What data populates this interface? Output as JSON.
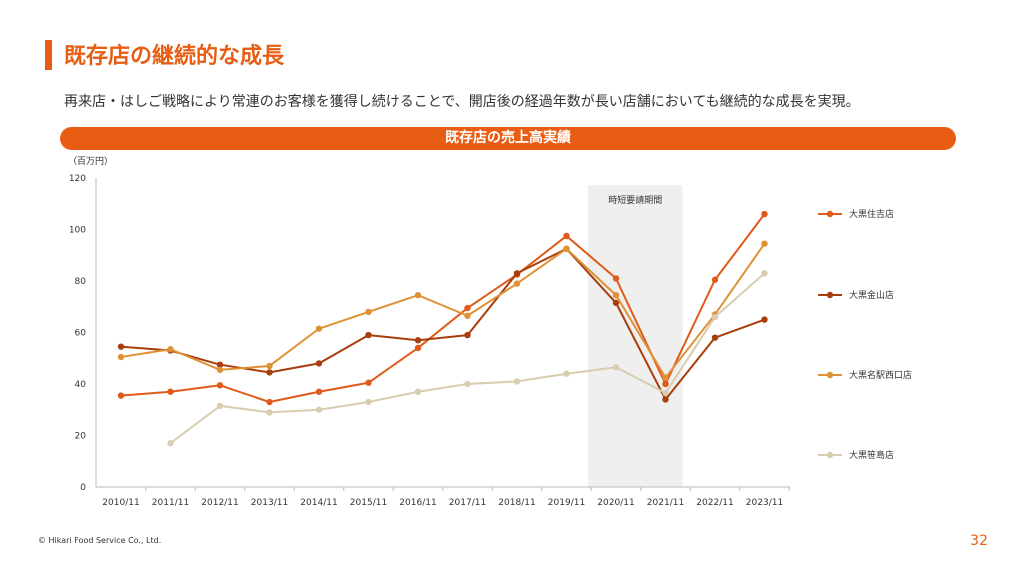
{
  "header": {
    "title": "既存店の継続的な成長",
    "lead": "再来店・はしご戦略により常連のお客様を獲得し続けることで、開店後の経過年数が長い店舗においても継続的な成長を実現。"
  },
  "chart_data": {
    "type": "line",
    "title": "既存店の売上高実績",
    "ylabel": "（百万円）",
    "xlabel": "",
    "ylim": [
      0,
      120
    ],
    "yticks": [
      0,
      20,
      40,
      60,
      80,
      100,
      120
    ],
    "categories": [
      "2010/11",
      "2011/11",
      "2012/11",
      "2013/11",
      "2014/11",
      "2015/11",
      "2016/11",
      "2017/11",
      "2018/11",
      "2019/11",
      "2020/11",
      "2021/11",
      "2022/11",
      "2023/11"
    ],
    "shaded_period": {
      "label": "時短要請期間",
      "from": "2020/11",
      "to": "2021/11"
    },
    "legend_position": "right",
    "grid": false,
    "series": [
      {
        "name": "大黒住吉店",
        "color": "#e05a1a",
        "values": [
          35.5,
          37,
          39.5,
          33,
          37,
          40.5,
          54,
          69.5,
          82.5,
          97.5,
          81,
          40,
          80.5,
          106
        ]
      },
      {
        "name": "大黒金山店",
        "color": "#a83e0c",
        "values": [
          54.5,
          53,
          47.5,
          44.5,
          48,
          59,
          57,
          59,
          83,
          92.5,
          71.5,
          34,
          58,
          65
        ]
      },
      {
        "name": "大黒名駅西口店",
        "color": "#df9235",
        "values": [
          50.5,
          53.5,
          45.5,
          47,
          61.5,
          68,
          74.5,
          66.5,
          79,
          92.5,
          74.5,
          42.5,
          67,
          94.5
        ]
      },
      {
        "name": "大黒笹島店",
        "color": "#d8ccb1",
        "values": [
          null,
          17,
          31.5,
          29,
          30,
          33,
          37,
          40,
          41,
          44,
          46.5,
          36.5,
          66,
          83
        ]
      }
    ]
  },
  "footer": {
    "copyright": "© Hikari Food Service Co., Ltd.",
    "page": "32"
  }
}
